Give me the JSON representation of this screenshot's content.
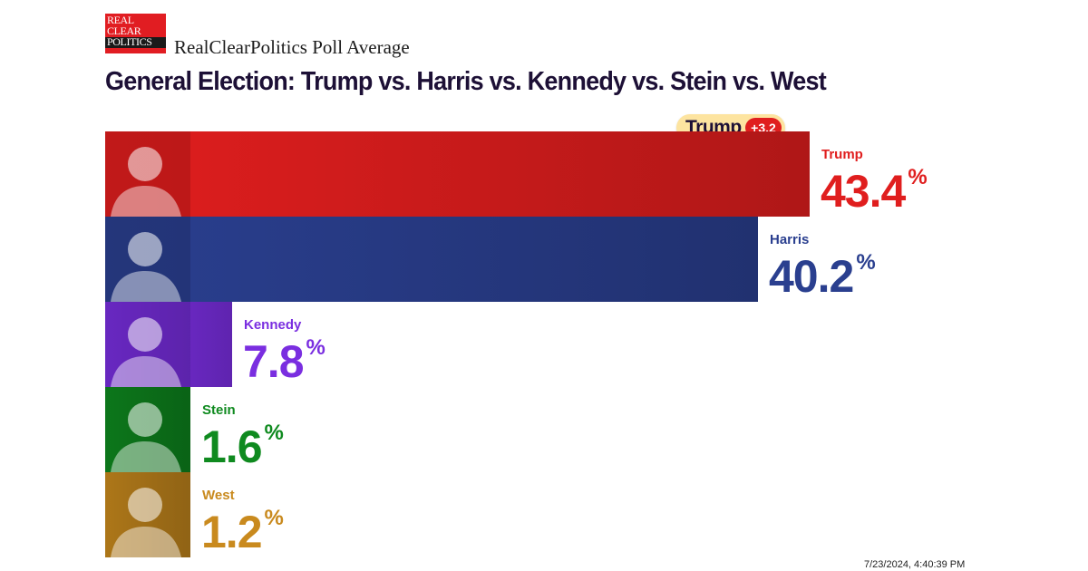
{
  "logo": {
    "line1": "REAL",
    "line2": "CLEAR",
    "line3": "POLITICS"
  },
  "brand": "RealClearPolitics Poll Average",
  "title": "General Election: Trump vs. Harris vs. Kennedy vs. Stein vs. West",
  "lead": {
    "name": "Trump",
    "margin": "+3.2"
  },
  "timestamp": "7/23/2024, 4:40:39 PM",
  "colors": {
    "trump": "#e01e1e",
    "harris": "#2a3f8f",
    "kennedy": "#7a2ee0",
    "stein": "#0f8a1f",
    "west": "#c98a1e"
  },
  "chart_data": {
    "type": "bar",
    "orientation": "horizontal",
    "categories": [
      "Trump",
      "Harris",
      "Kennedy",
      "Stein",
      "West"
    ],
    "values": [
      43.4,
      40.2,
      7.8,
      1.6,
      1.2
    ],
    "value_labels": [
      "43.4",
      "40.2",
      "7.8",
      "1.6",
      "1.2"
    ],
    "unit": "%",
    "colors": [
      "#e01e1e",
      "#2a3f8f",
      "#7a2ee0",
      "#0f8a1f",
      "#c98a1e"
    ],
    "title": "General Election: Trump vs. Harris vs. Kennedy vs. Stein vs. West",
    "grid": false,
    "legend": "none"
  }
}
